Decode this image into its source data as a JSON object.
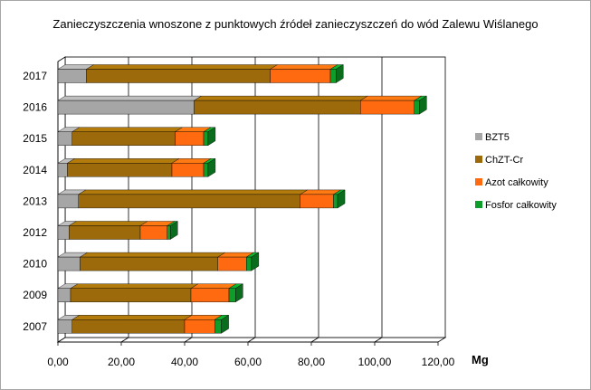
{
  "chart_data": {
    "type": "bar",
    "orientation": "horizontal",
    "stacked": true,
    "title": "Zanieczyszczenia wnoszone z punktowych  źródeł zanieczyszczeń do  wód Zalewu Wiślanego",
    "xlabel": "Mg",
    "ylabel": "",
    "xlim": [
      0,
      120
    ],
    "x_ticks": [
      "0,00",
      "20,00",
      "40,00",
      "60,00",
      "80,00",
      "100,00",
      "120,00"
    ],
    "categories": [
      "2017",
      "2016",
      "2015",
      "2014",
      "2013",
      "2012",
      "2010",
      "2009",
      "2007"
    ],
    "series": [
      {
        "name": "BZT5",
        "color": "#a6a6a6",
        "values": [
          9.0,
          43.0,
          4.5,
          3.0,
          6.5,
          3.5,
          7.0,
          4.0,
          4.5
        ]
      },
      {
        "name": "ChZT-Cr",
        "color": "#9c6a0a",
        "values": [
          58.0,
          52.5,
          32.5,
          33.0,
          70.0,
          22.5,
          43.5,
          38.0,
          35.5
        ]
      },
      {
        "name": "Azot całkowity",
        "color": "#ff6a10",
        "values": [
          19.0,
          17.0,
          9.0,
          10.0,
          10.5,
          8.5,
          9.0,
          12.0,
          9.5
        ]
      },
      {
        "name": "Fosfor całkowity",
        "color": "#0e9c2a",
        "values": [
          1.8,
          1.6,
          1.4,
          1.4,
          1.3,
          1.0,
          1.6,
          2.1,
          2.1
        ]
      }
    ],
    "grid": true,
    "legend": "right"
  }
}
